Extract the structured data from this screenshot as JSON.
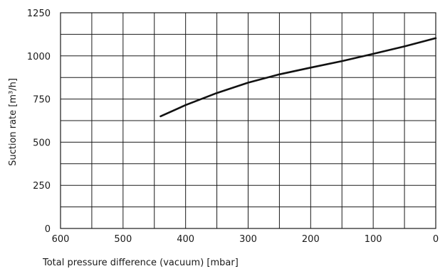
{
  "chart_data": {
    "type": "line",
    "xlabel": "Total pressure difference (vacuum) [mbar]",
    "ylabel": "Suction rate [m³/h]",
    "xlim": [
      600,
      0
    ],
    "ylim": [
      0,
      1250
    ],
    "x_ticks": [
      600,
      500,
      400,
      300,
      200,
      100,
      0
    ],
    "y_ticks": [
      0,
      250,
      500,
      750,
      1000,
      1250
    ],
    "x_tick_labels": [
      "600",
      "500",
      "400",
      "300",
      "200",
      "100",
      "0"
    ],
    "y_tick_labels": [
      "0",
      "250",
      "500",
      "750",
      "1000",
      "1250"
    ],
    "x_grid_step": 50,
    "y_grid_step": 125,
    "grid": true,
    "series": [
      {
        "x": [
          440,
          400,
          350,
          300,
          250,
          200,
          150,
          100,
          50,
          0
        ],
        "y": [
          650,
          715,
          785,
          845,
          893,
          932,
          970,
          1012,
          1055,
          1103
        ]
      }
    ]
  }
}
